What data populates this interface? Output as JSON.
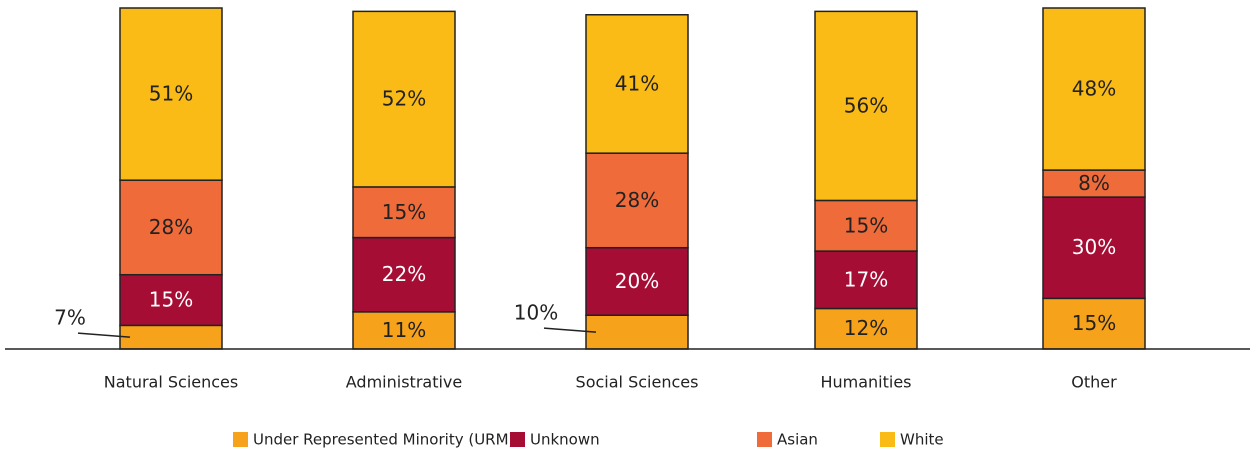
{
  "chart_data": {
    "type": "stacked_bar",
    "categories": [
      "Natural Sciences",
      "Administrative",
      "Social Sciences",
      "Humanities",
      "Other"
    ],
    "series": [
      {
        "name": "Under Represented Minority (URM)",
        "color": "#f7a21b",
        "values": [
          7,
          11,
          10,
          12,
          15
        ],
        "value_labels": [
          "7%",
          "11%",
          "10%",
          "12%",
          "15%"
        ]
      },
      {
        "name": "Unknown",
        "color": "#a50d35",
        "values": [
          15,
          22,
          20,
          17,
          30
        ],
        "value_labels": [
          "15%",
          "22%",
          "20%",
          "17%",
          "30%"
        ]
      },
      {
        "name": "Asian",
        "color": "#ef6b3a",
        "values": [
          28,
          15,
          28,
          15,
          8
        ],
        "value_labels": [
          "28%",
          "15%",
          "28%",
          "15%",
          "8%"
        ]
      },
      {
        "name": "White",
        "color": "#fbbb16",
        "values": [
          51,
          52,
          41,
          56,
          48
        ],
        "value_labels": [
          "51%",
          "52%",
          "41%",
          "56%",
          "48%"
        ]
      }
    ],
    "ylim": [
      0,
      101
    ],
    "legend": "bottom"
  }
}
